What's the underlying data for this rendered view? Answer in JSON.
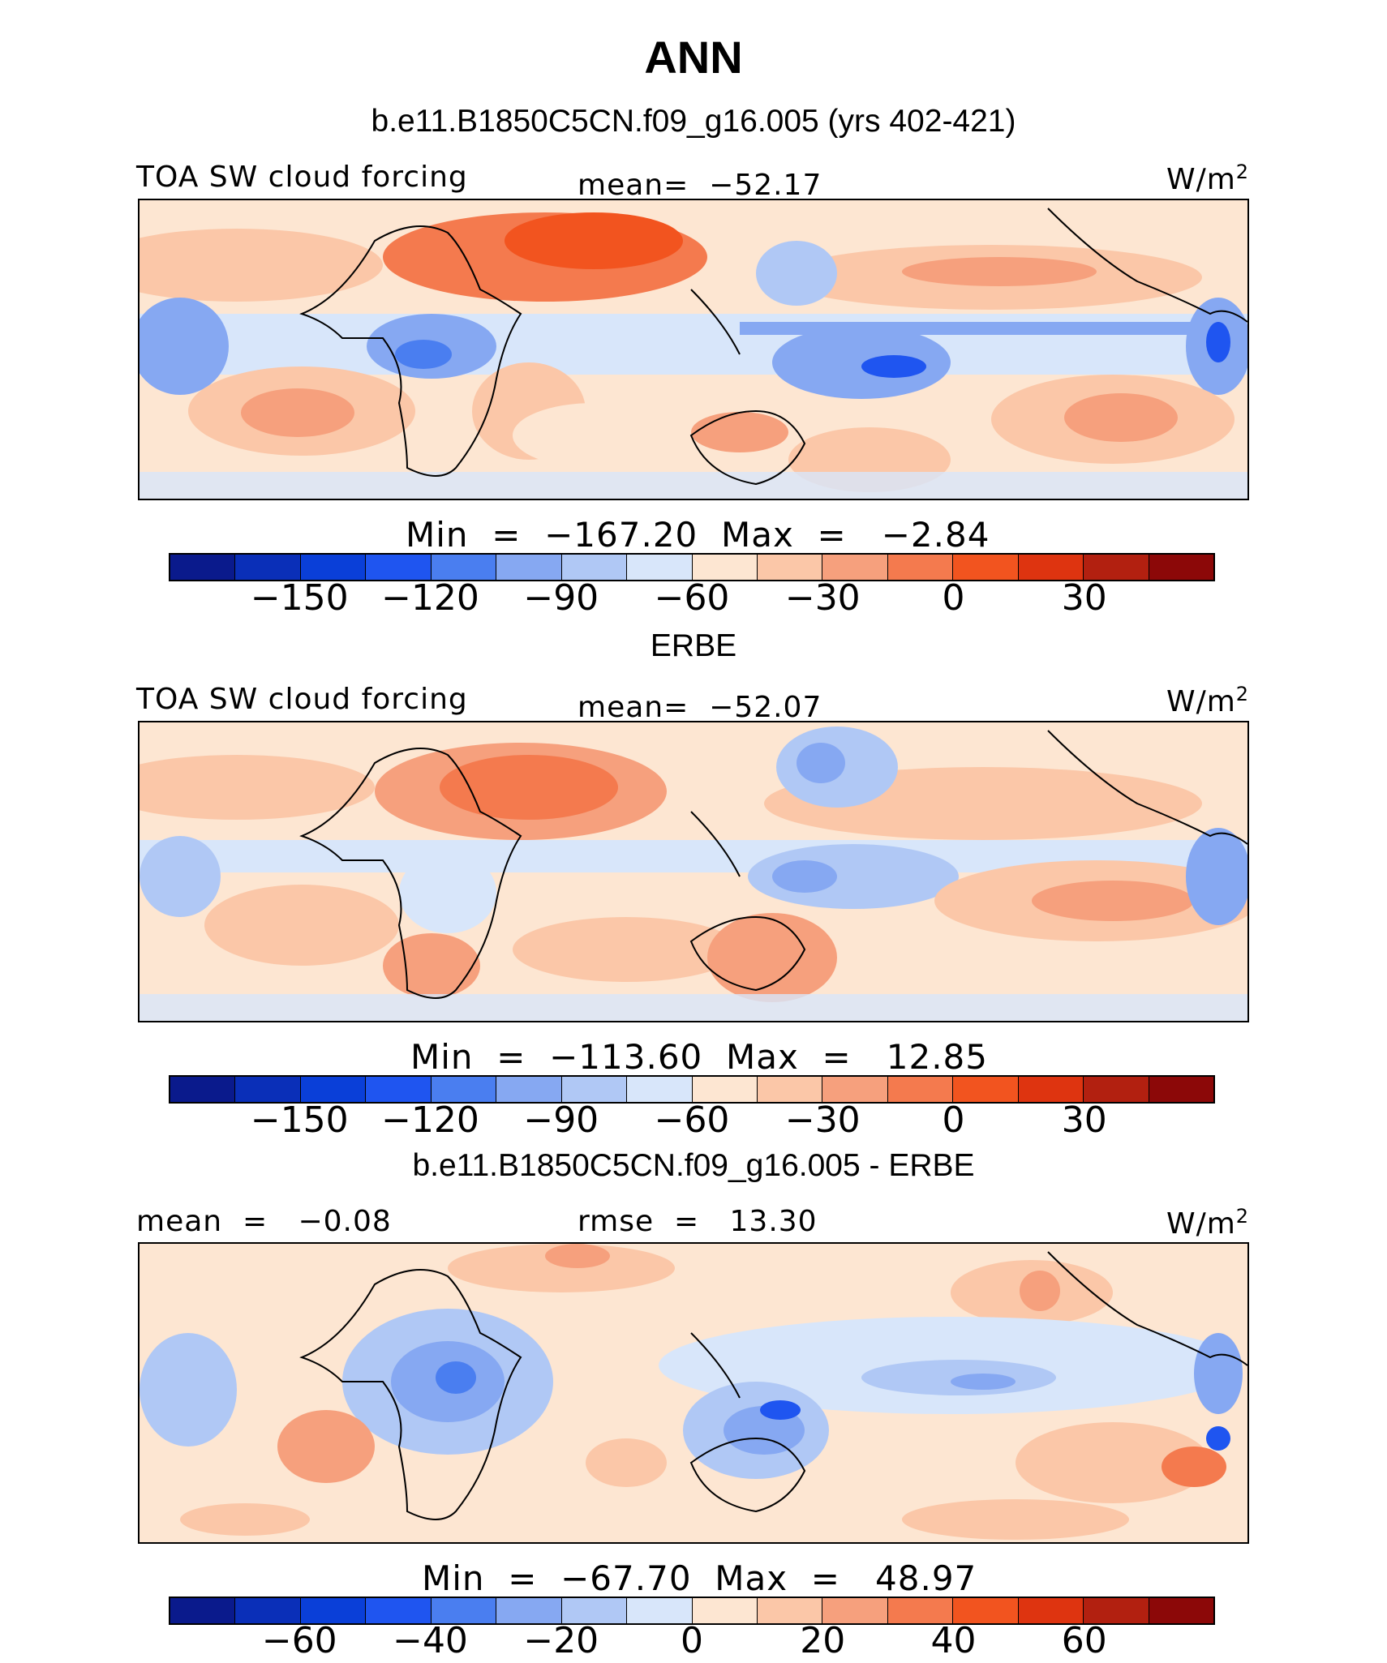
{
  "title": "ANN",
  "palette": [
    "#0a1a8c",
    "#0a2fb8",
    "#0a3fd8",
    "#1f55f0",
    "#4a7ef0",
    "#86a8f2",
    "#b0c8f5",
    "#d8e6fa",
    "#fde6d2",
    "#fbc7a8",
    "#f6a07d",
    "#f47a4e",
    "#f2541f",
    "#de3410",
    "#b22010",
    "#8c0808"
  ],
  "chart_data": [
    {
      "type": "heatmap",
      "name": "model",
      "subtitle": "b.e11.B1850C5CN.f09_g16.005 (yrs 402-421)",
      "left_label": "TOA SW cloud forcing",
      "center_label": "mean=  −52.17",
      "units": "W/m",
      "units_sup": "2",
      "min_max": "Min  =  −167.20  Max  =   −2.84",
      "colorbar_ticks": [
        "−150",
        "−120",
        "−90",
        "−60",
        "−30",
        "0",
        "30"
      ],
      "colorbar_levels": [
        -165,
        -150,
        -135,
        -120,
        -105,
        -90,
        -75,
        -60,
        -45,
        -30,
        -15,
        0,
        15,
        30,
        45
      ],
      "mean": -52.17,
      "min": -167.2,
      "max": -2.84
    },
    {
      "type": "heatmap",
      "name": "obs",
      "subtitle": "ERBE",
      "left_label": "TOA SW cloud forcing",
      "center_label": "mean=  −52.07",
      "units": "W/m",
      "units_sup": "2",
      "min_max": "Min  =  −113.60  Max  =   12.85",
      "colorbar_ticks": [
        "−150",
        "−120",
        "−90",
        "−60",
        "−30",
        "0",
        "30"
      ],
      "colorbar_levels": [
        -165,
        -150,
        -135,
        -120,
        -105,
        -90,
        -75,
        -60,
        -45,
        -30,
        -15,
        0,
        15,
        30,
        45
      ],
      "mean": -52.07,
      "min": -113.6,
      "max": 12.85
    },
    {
      "type": "heatmap",
      "name": "diff",
      "subtitle": "b.e11.B1850C5CN.f09_g16.005 - ERBE",
      "left_label": "mean  =   −0.08",
      "center_label": "rmse  =   13.30",
      "units": "W/m",
      "units_sup": "2",
      "min_max": "Min  =  −67.70  Max  =   48.97",
      "colorbar_ticks": [
        "−60",
        "−40",
        "−20",
        "0",
        "20",
        "40",
        "60"
      ],
      "colorbar_levels": [
        -70,
        -60,
        -50,
        -40,
        -30,
        -20,
        -10,
        0,
        10,
        20,
        30,
        40,
        50,
        60,
        70
      ],
      "mean": -0.08,
      "rmse": 13.3,
      "min": -67.7,
      "max": 48.97
    }
  ]
}
